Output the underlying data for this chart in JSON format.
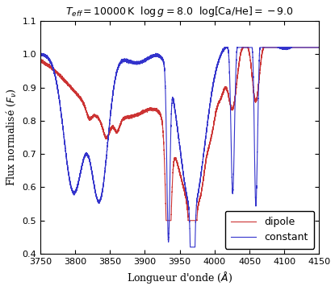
{
  "title": "$T_{eff} = 10000\\,\\mathrm{K}$  $\\log g = 8.0$  $\\log[\\mathrm{Ca/He}] = -9.0$",
  "xlabel": "Longueur d'onde ($\\AA$)",
  "ylabel": "Flux normalisé ($F_\\nu$)",
  "xlim": [
    3750,
    4150
  ],
  "ylim": [
    0.4,
    1.1
  ],
  "color_dipole": "#cc3333",
  "color_constant": "#3333cc",
  "legend_labels": [
    "dipole",
    "constant"
  ],
  "title_fontsize": 9,
  "label_fontsize": 9,
  "tick_fontsize": 8
}
